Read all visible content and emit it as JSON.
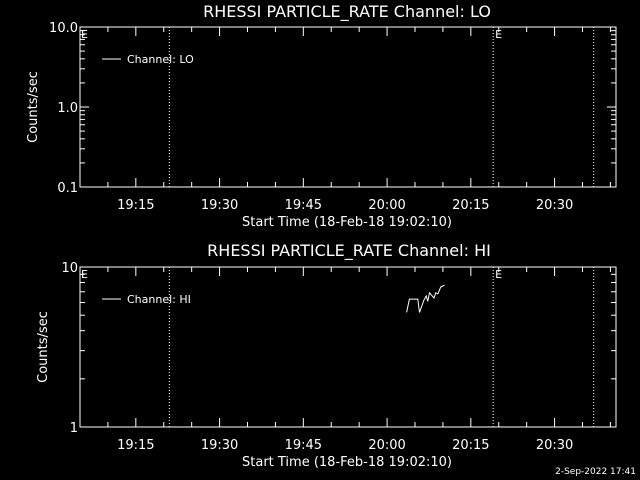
{
  "footer": {
    "timestamp": "2-Sep-2022 17:41"
  },
  "chart_data": [
    {
      "type": "line",
      "title": "RHESSI PARTICLE_RATE Channel: LO",
      "xlabel": "Start Time (18-Feb-18 19:02:10)",
      "ylabel": "Counts/sec",
      "yscale": "log",
      "ylim": [
        0.1,
        10.0
      ],
      "yticks": [
        {
          "value": 0.1,
          "label": "0.1"
        },
        {
          "value": 1.0,
          "label": "1.0"
        },
        {
          "value": 10.0,
          "label": "10.0"
        }
      ],
      "xlim": [
        "19:05",
        "20:41"
      ],
      "xticks": [
        "19:15",
        "19:30",
        "19:45",
        "20:00",
        "20:15",
        "20:30"
      ],
      "legend": {
        "label": "Channel: LO",
        "placement": "top-left"
      },
      "markers": [
        {
          "time": "19:21",
          "label": "E",
          "label_side": "left"
        },
        {
          "time": "20:19",
          "label": "E",
          "label_side": "right"
        },
        {
          "time": "20:37",
          "label": "",
          "label_side": "right"
        }
      ],
      "series": [
        {
          "values": []
        }
      ],
      "grid": false
    },
    {
      "type": "line",
      "title": "RHESSI PARTICLE_RATE Channel: HI",
      "xlabel": "Start Time (18-Feb-18 19:02:10)",
      "ylabel": "Counts/sec",
      "yscale": "log",
      "ylim": [
        1,
        10
      ],
      "yticks": [
        {
          "value": 1,
          "label": "1"
        },
        {
          "value": 10,
          "label": "10"
        }
      ],
      "xlim": [
        "19:05",
        "20:41"
      ],
      "xticks": [
        "19:15",
        "19:30",
        "19:45",
        "20:00",
        "20:15",
        "20:30"
      ],
      "legend": {
        "label": "Channel: HI",
        "placement": "top-left"
      },
      "markers": [
        {
          "time": "19:21",
          "label": "E",
          "label_side": "left"
        },
        {
          "time": "20:19",
          "label": "E",
          "label_side": "right"
        },
        {
          "time": "20:37",
          "label": "",
          "label_side": "right"
        }
      ],
      "series": [
        {
          "values": [
            {
              "t": "20:03.5",
              "y": 5.2
            },
            {
              "t": "20:04.0",
              "y": 6.3
            },
            {
              "t": "20:05.5",
              "y": 6.3
            },
            {
              "t": "20:05.8",
              "y": 5.2
            },
            {
              "t": "20:06.6",
              "y": 6.2
            },
            {
              "t": "20:07.0",
              "y": 6.6
            },
            {
              "t": "20:07.3",
              "y": 6.1
            },
            {
              "t": "20:07.6",
              "y": 6.9
            },
            {
              "t": "20:08.4",
              "y": 6.4
            },
            {
              "t": "20:08.7",
              "y": 6.9
            },
            {
              "t": "20:09.1",
              "y": 6.8
            },
            {
              "t": "20:09.6",
              "y": 7.5
            },
            {
              "t": "20:10.3",
              "y": 7.7
            }
          ]
        }
      ],
      "grid": false
    }
  ]
}
